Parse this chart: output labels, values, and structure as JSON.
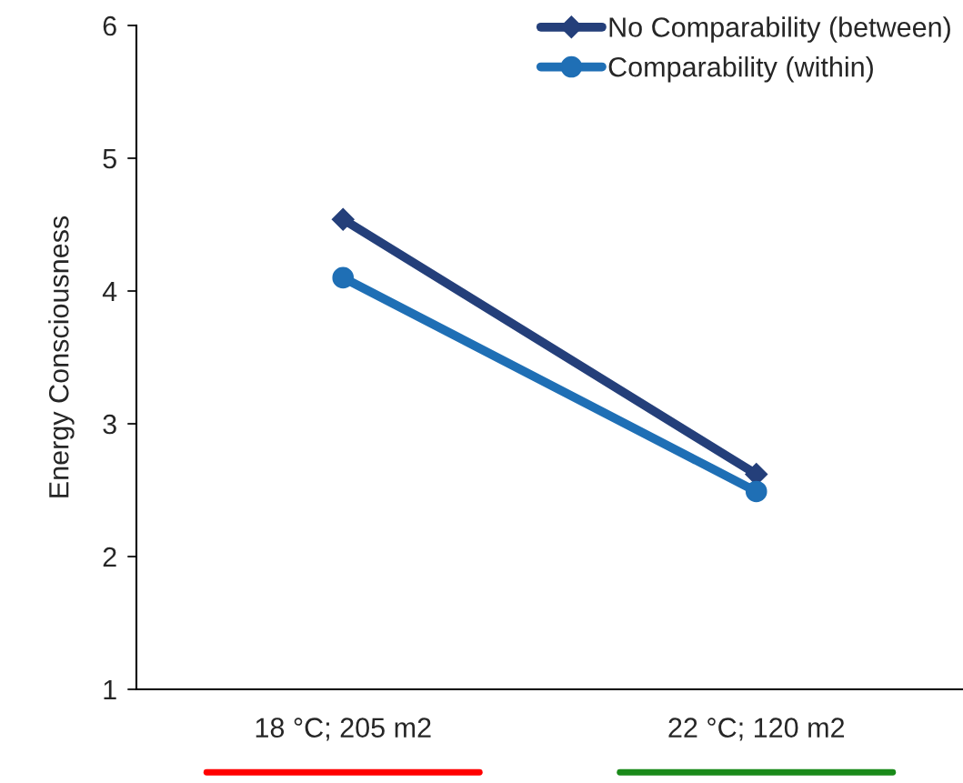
{
  "chart_data": {
    "type": "line",
    "ylabel": "Energy Consciousness",
    "categories": [
      "18 °C; 205 m2",
      "22 °C; 120 m2"
    ],
    "series": [
      {
        "name": "No Comparability (between)",
        "color": "#243f7a",
        "values": [
          4.54,
          2.62
        ],
        "marker": "diamond"
      },
      {
        "name": "Comparability (within)",
        "color": "#1f6fb5",
        "values": [
          4.1,
          2.49
        ],
        "marker": "circle"
      }
    ],
    "ylim": [
      1,
      6
    ],
    "yticks": [
      1,
      2,
      3,
      4,
      5,
      6
    ],
    "grid": false,
    "legend": "top right",
    "line_style": "solid"
  }
}
